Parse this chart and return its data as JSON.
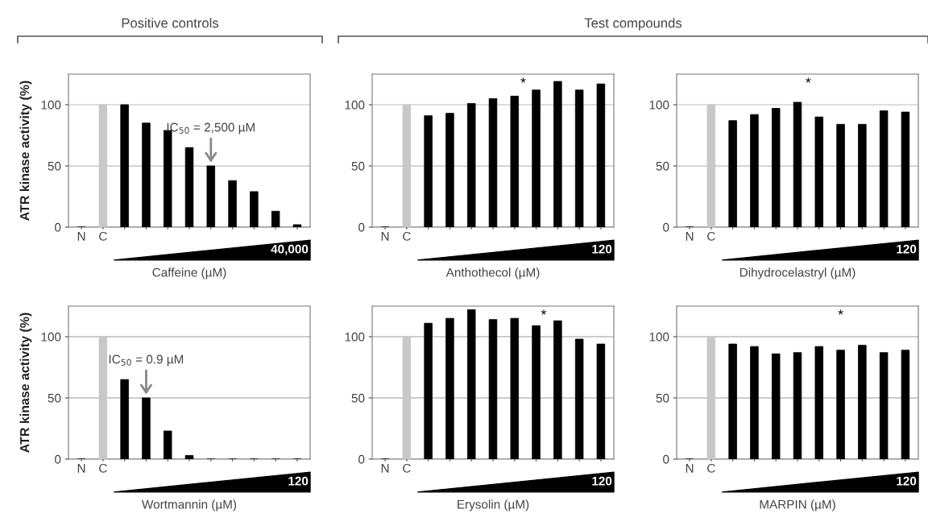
{
  "chart_data": [
    {
      "type": "bar",
      "ylabel": "ATR kinase activity (%)",
      "xlabel": "Caffeine (µM)",
      "categories": [
        "N",
        "C",
        null,
        null,
        null,
        null,
        null,
        null,
        null,
        null,
        null
      ],
      "values": [
        0,
        100,
        100,
        85,
        79,
        65,
        50,
        38,
        29,
        13,
        2
      ],
      "colors": [
        "#000000",
        "#c8c8c8",
        "#000000",
        "#000000",
        "#000000",
        "#000000",
        "#000000",
        "#000000",
        "#000000",
        "#000000",
        "#000000"
      ],
      "ylim": [
        0,
        125
      ],
      "yticks": [
        0,
        50,
        100
      ],
      "grid": "y",
      "annotations": [
        "Positive controls",
        "40,000",
        "IC$_{50}$ = 2,500 µM"
      ]
    },
    {
      "type": "bar",
      "xlabel": "Anthothecol (µM)",
      "categories": [
        "N",
        "C",
        null,
        null,
        null,
        null,
        null,
        null,
        null,
        null,
        null
      ],
      "values": [
        0,
        100,
        91,
        93,
        101,
        105,
        107,
        112,
        119,
        112,
        117
      ],
      "colors": [
        "#000000",
        "#c8c8c8",
        "#000000",
        "#000000",
        "#000000",
        "#000000",
        "#000000",
        "#000000",
        "#000000",
        "#000000",
        "#000000"
      ],
      "ylim": [
        0,
        125
      ],
      "yticks": [
        0,
        50,
        100
      ],
      "grid": "y",
      "annotations": [
        "Test compounds",
        "120",
        "*"
      ]
    },
    {
      "type": "bar",
      "xlabel": "Dihydrocelastryl (µM)",
      "categories": [
        "N",
        "C",
        null,
        null,
        null,
        null,
        null,
        null,
        null,
        null,
        null
      ],
      "values": [
        0,
        100,
        87,
        92,
        97,
        102,
        90,
        84,
        84,
        95,
        94
      ],
      "colors": [
        "#000000",
        "#c8c8c8",
        "#000000",
        "#000000",
        "#000000",
        "#000000",
        "#000000",
        "#000000",
        "#000000",
        "#000000",
        "#000000"
      ],
      "ylim": [
        0,
        125
      ],
      "yticks": [
        0,
        50,
        100
      ],
      "grid": "y",
      "annotations": [
        "120",
        "*"
      ]
    },
    {
      "type": "bar",
      "ylabel": "ATR kinase activity (%)",
      "xlabel": "Wortmannin (µM)",
      "categories": [
        "N",
        "C",
        null,
        null,
        null,
        null,
        null,
        null,
        null,
        null,
        null
      ],
      "values": [
        0,
        100,
        65,
        50,
        23,
        3,
        0,
        0,
        0,
        0,
        0
      ],
      "colors": [
        "#000000",
        "#c8c8c8",
        "#000000",
        "#000000",
        "#000000",
        "#000000",
        "#000000",
        "#000000",
        "#000000",
        "#000000",
        "#000000"
      ],
      "ylim": [
        0,
        125
      ],
      "yticks": [
        0,
        50,
        100
      ],
      "grid": "y",
      "annotations": [
        "120",
        "IC$_{50}$ = 0.9 µM"
      ]
    },
    {
      "type": "bar",
      "xlabel": "Erysolin (µM)",
      "categories": [
        "N",
        "C",
        null,
        null,
        null,
        null,
        null,
        null,
        null,
        null,
        null
      ],
      "values": [
        0,
        100,
        111,
        115,
        122,
        114,
        115,
        109,
        113,
        98,
        94
      ],
      "colors": [
        "#000000",
        "#c8c8c8",
        "#000000",
        "#000000",
        "#000000",
        "#000000",
        "#000000",
        "#000000",
        "#000000",
        "#000000",
        "#000000"
      ],
      "ylim": [
        0,
        125
      ],
      "yticks": [
        0,
        50,
        100
      ],
      "grid": "y",
      "annotations": [
        "120",
        "*"
      ]
    },
    {
      "type": "bar",
      "xlabel": "MARPIN (µM)",
      "categories": [
        "N",
        "C",
        null,
        null,
        null,
        null,
        null,
        null,
        null,
        null,
        null
      ],
      "values": [
        0,
        100,
        94,
        92,
        86,
        87,
        92,
        89,
        93,
        87,
        89
      ],
      "colors": [
        "#000000",
        "#c8c8c8",
        "#000000",
        "#000000",
        "#000000",
        "#000000",
        "#000000",
        "#000000",
        "#000000",
        "#000000",
        "#000000"
      ],
      "ylim": [
        0,
        125
      ],
      "yticks": [
        0,
        50,
        100
      ],
      "grid": "y",
      "annotations": [
        "120",
        "*"
      ]
    }
  ]
}
